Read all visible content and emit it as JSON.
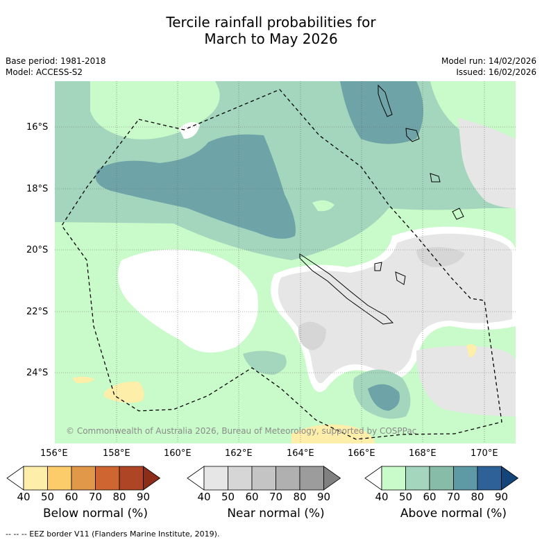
{
  "title": {
    "line1": "Tercile rainfall probabilities for",
    "line2": "March to May 2026"
  },
  "meta": {
    "base_period": "Base period: 1981-2018",
    "model": "Model: ACCESS-S2",
    "model_run": "Model run: 14/02/2026",
    "issued": "Issued: 16/02/2026"
  },
  "map": {
    "lat_labels": [
      "16°S",
      "18°S",
      "20°S",
      "22°S",
      "24°S"
    ],
    "lon_labels": [
      "156°E",
      "158°E",
      "160°E",
      "162°E",
      "164°E",
      "166°E",
      "168°E",
      "170°E"
    ],
    "copyright": "© Commonwealth of Australia 2026, Bureau of Meteorology, supported by COSPPac"
  },
  "legends": [
    {
      "caption": "Below normal (%)",
      "ticks": [
        "40",
        "50",
        "60",
        "70",
        "80",
        "90"
      ],
      "colors": [
        "#ffffff",
        "#fdeeaa",
        "#fdcc6a",
        "#e19848",
        "#cf6632",
        "#ae4525",
        "#8d2c18"
      ]
    },
    {
      "caption": "Near normal (%)",
      "ticks": [
        "40",
        "50",
        "60",
        "70",
        "80",
        "90"
      ],
      "colors": [
        "#ffffff",
        "#e6e6e6",
        "#d6d6d6",
        "#c4c4c4",
        "#b0b0b0",
        "#9c9c9c",
        "#808080"
      ]
    },
    {
      "caption": "Above normal (%)",
      "ticks": [
        "40",
        "50",
        "60",
        "70",
        "80",
        "90"
      ],
      "colors": [
        "#ffffff",
        "#c9fac9",
        "#a3d6bc",
        "#87bda8",
        "#5d9aa6",
        "#2e6198",
        "#14457a"
      ]
    }
  ],
  "footer": "--  --  -- EEZ border V11 (Flanders Marine Institute, 2019)."
}
